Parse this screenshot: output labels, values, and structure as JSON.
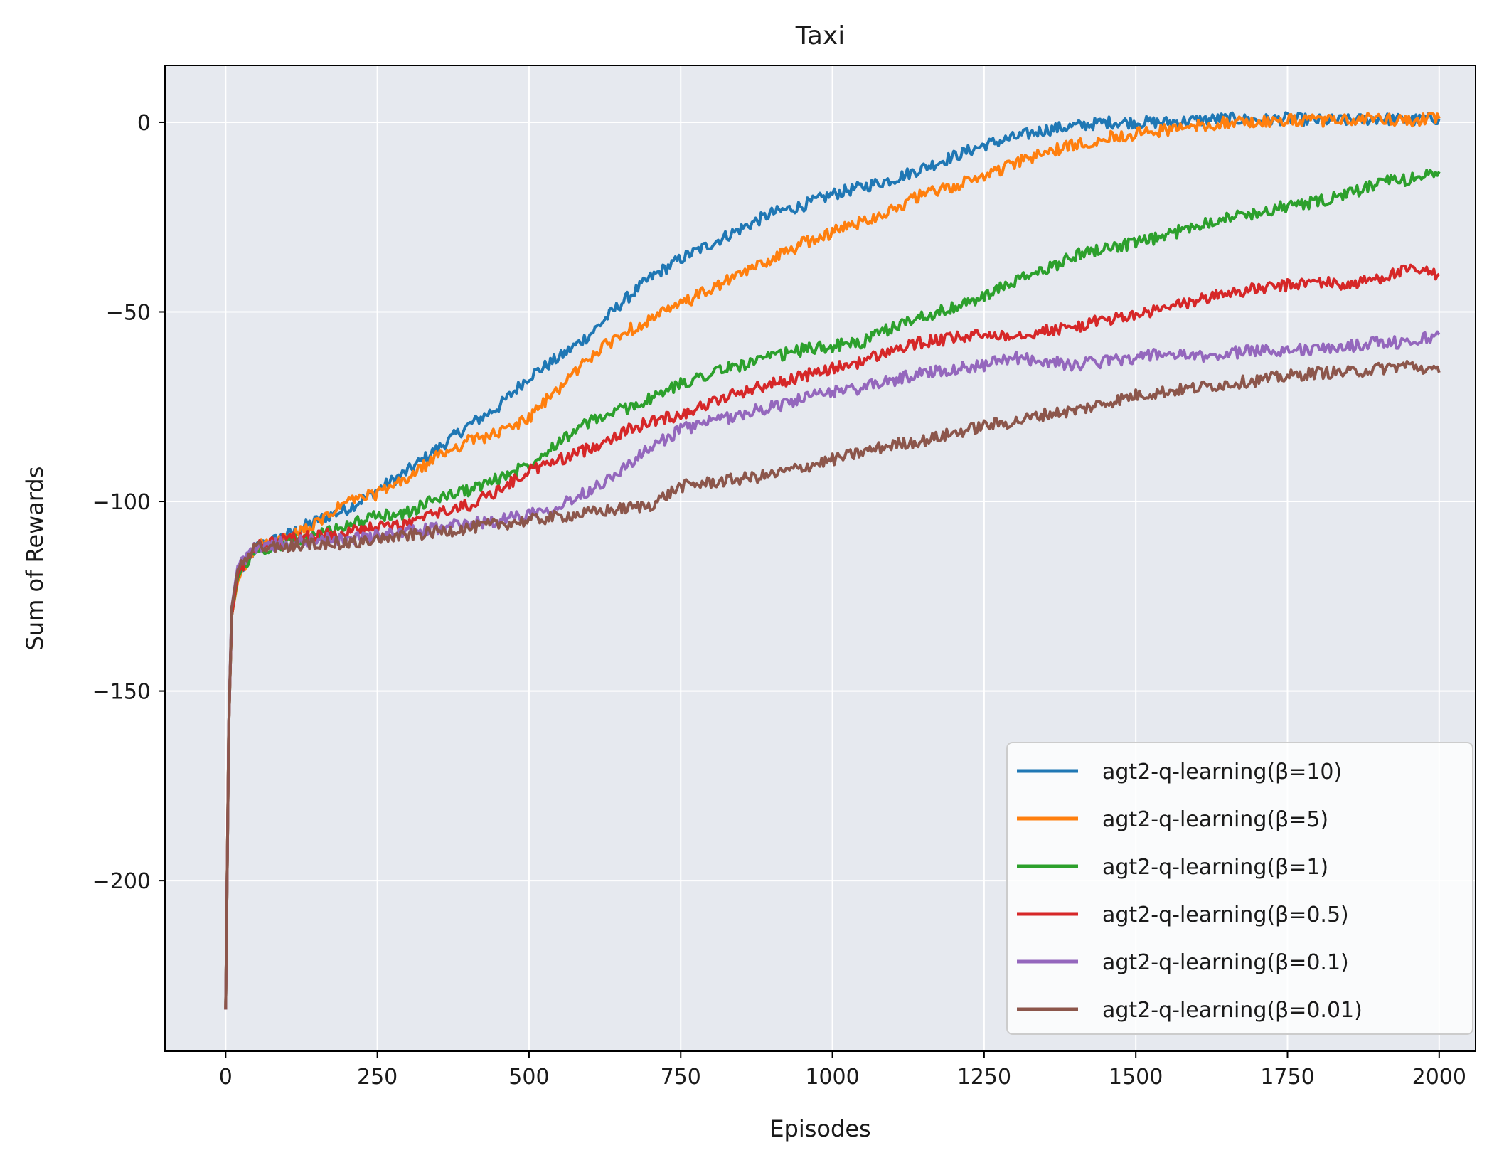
{
  "chart_data": {
    "type": "line",
    "title": "Taxi",
    "xlabel": "Episodes",
    "ylabel": "Sum of Rewards",
    "xlim": [
      -100,
      2060
    ],
    "ylim": [
      -245,
      15
    ],
    "xticks": [
      0,
      250,
      500,
      750,
      1000,
      1250,
      1500,
      1750,
      2000
    ],
    "xtick_labels": [
      "0",
      "250",
      "500",
      "750",
      "1000",
      "1250",
      "1500",
      "1750",
      "2000"
    ],
    "yticks": [
      0,
      -50,
      -100,
      -150,
      -200
    ],
    "ytick_labels": [
      "0",
      "−50",
      "−100",
      "−150",
      "−200"
    ],
    "grid": true,
    "legend_position": "lower-right",
    "background": "#e6e9ef",
    "series": [
      {
        "name": "agt2-q-learning(β=10)",
        "color": "#1f77b4",
        "x": [
          0,
          5,
          10,
          20,
          50,
          100,
          150,
          200,
          250,
          300,
          350,
          400,
          450,
          500,
          550,
          600,
          650,
          700,
          750,
          800,
          850,
          900,
          950,
          1000,
          1050,
          1100,
          1150,
          1200,
          1250,
          1300,
          1350,
          1400,
          1450,
          1500,
          1550,
          1600,
          1650,
          1700,
          1750,
          1800,
          1850,
          1900,
          1950,
          2000
        ],
        "y": [
          -234,
          -160,
          -130,
          -120,
          -112,
          -109,
          -105,
          -102,
          -97,
          -92,
          -86,
          -80,
          -75,
          -67,
          -62,
          -56,
          -48,
          -41,
          -36,
          -32,
          -28,
          -24,
          -22,
          -19,
          -17,
          -15,
          -12,
          -9,
          -6,
          -4,
          -2,
          -1,
          0,
          0,
          0,
          0.5,
          1,
          0.5,
          1,
          0.5,
          0.5,
          1,
          0.5,
          1
        ]
      },
      {
        "name": "agt2-q-learning(β=5)",
        "color": "#ff7f0e",
        "x": [
          0,
          5,
          10,
          20,
          50,
          100,
          150,
          200,
          250,
          300,
          350,
          400,
          450,
          500,
          550,
          600,
          650,
          700,
          750,
          800,
          850,
          900,
          950,
          1000,
          1050,
          1100,
          1150,
          1200,
          1250,
          1300,
          1350,
          1400,
          1450,
          1500,
          1550,
          1600,
          1650,
          1700,
          1750,
          1800,
          1850,
          1900,
          1950,
          2000
        ],
        "y": [
          -234,
          -160,
          -130,
          -121,
          -112,
          -110,
          -106,
          -100,
          -98,
          -94,
          -88,
          -84,
          -82,
          -78,
          -70,
          -62,
          -56,
          -52,
          -48,
          -44,
          -40,
          -36,
          -32,
          -29,
          -26,
          -23,
          -19,
          -17,
          -14,
          -11,
          -8,
          -6,
          -4,
          -3,
          -2,
          -1,
          0,
          0,
          0.5,
          0.5,
          0.5,
          1,
          0.5,
          1
        ]
      },
      {
        "name": "agt2-q-learning(β=1)",
        "color": "#2ca02c",
        "x": [
          0,
          5,
          10,
          20,
          50,
          100,
          150,
          200,
          250,
          300,
          350,
          400,
          450,
          500,
          550,
          600,
          650,
          700,
          750,
          800,
          850,
          900,
          950,
          1000,
          1050,
          1100,
          1150,
          1200,
          1250,
          1300,
          1350,
          1400,
          1450,
          1500,
          1550,
          1600,
          1650,
          1700,
          1750,
          1800,
          1850,
          1900,
          1950,
          2000
        ],
        "y": [
          -234,
          -160,
          -130,
          -120,
          -113,
          -111,
          -109,
          -106,
          -104,
          -103,
          -99,
          -97,
          -94,
          -90,
          -84,
          -79,
          -76,
          -73,
          -69,
          -66,
          -64,
          -62,
          -60,
          -59,
          -58,
          -54,
          -51,
          -49,
          -46,
          -42,
          -39,
          -35,
          -33,
          -32,
          -30,
          -27,
          -25,
          -24,
          -22,
          -21,
          -19,
          -16,
          -15,
          -13
        ]
      },
      {
        "name": "agt2-q-learning(β=0.5)",
        "color": "#d62728",
        "x": [
          0,
          5,
          10,
          20,
          50,
          100,
          150,
          200,
          250,
          300,
          350,
          400,
          450,
          500,
          550,
          600,
          650,
          700,
          750,
          800,
          850,
          900,
          950,
          1000,
          1050,
          1100,
          1150,
          1200,
          1250,
          1300,
          1350,
          1400,
          1450,
          1500,
          1550,
          1600,
          1650,
          1700,
          1750,
          1800,
          1850,
          1900,
          1950,
          2000
        ],
        "y": [
          -234,
          -160,
          -130,
          -119,
          -112,
          -110,
          -109,
          -108,
          -107,
          -106,
          -103,
          -101,
          -97,
          -92,
          -89,
          -86,
          -82,
          -79,
          -77,
          -74,
          -71,
          -69,
          -67,
          -65,
          -63,
          -60,
          -58,
          -57,
          -56,
          -56,
          -55,
          -54,
          -52,
          -51,
          -49,
          -47,
          -45,
          -44,
          -43,
          -42,
          -43,
          -41,
          -39,
          -40
        ]
      },
      {
        "name": "agt2-q-learning(β=0.1)",
        "color": "#9467bd",
        "x": [
          0,
          5,
          10,
          20,
          50,
          100,
          150,
          200,
          250,
          300,
          350,
          400,
          450,
          500,
          550,
          600,
          650,
          700,
          750,
          800,
          850,
          900,
          950,
          1000,
          1050,
          1100,
          1150,
          1200,
          1250,
          1300,
          1350,
          1400,
          1450,
          1500,
          1550,
          1600,
          1650,
          1700,
          1750,
          1800,
          1850,
          1900,
          1950,
          2000
        ],
        "y": [
          -234,
          -160,
          -128,
          -117,
          -112,
          -111,
          -110,
          -110,
          -109,
          -108,
          -107,
          -106,
          -105,
          -103,
          -101,
          -97,
          -92,
          -86,
          -81,
          -79,
          -77,
          -75,
          -73,
          -71,
          -70,
          -68,
          -66,
          -65,
          -64,
          -62,
          -63,
          -64,
          -63,
          -62,
          -61,
          -62,
          -61,
          -60,
          -60,
          -60,
          -59,
          -58,
          -58,
          -56
        ]
      },
      {
        "name": "agt2-q-learning(β=0.01)",
        "color": "#8c564b",
        "x": [
          0,
          5,
          10,
          20,
          50,
          100,
          150,
          200,
          250,
          300,
          350,
          400,
          450,
          500,
          550,
          600,
          650,
          700,
          750,
          800,
          850,
          900,
          950,
          1000,
          1050,
          1100,
          1150,
          1200,
          1250,
          1300,
          1350,
          1400,
          1450,
          1500,
          1550,
          1600,
          1650,
          1700,
          1750,
          1800,
          1850,
          1900,
          1950,
          2000
        ],
        "y": [
          -234,
          -160,
          -128,
          -118,
          -112,
          -112,
          -111,
          -111,
          -110,
          -109,
          -108,
          -107,
          -106,
          -105,
          -104,
          -103,
          -102,
          -101,
          -96,
          -95,
          -94,
          -93,
          -91,
          -89,
          -87,
          -85,
          -84,
          -82,
          -80,
          -79,
          -77,
          -76,
          -74,
          -72,
          -71,
          -70,
          -69,
          -68,
          -67,
          -66,
          -66,
          -65,
          -64,
          -66
        ]
      }
    ]
  }
}
